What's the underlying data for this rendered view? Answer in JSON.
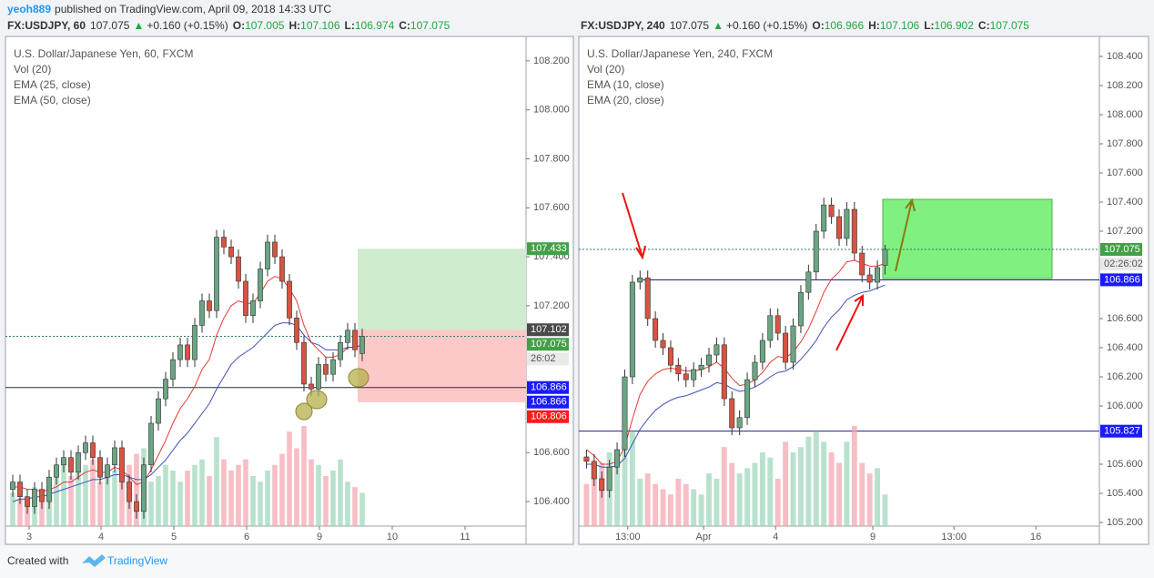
{
  "header": {
    "author": "yeoh889",
    "text": "published on TradingView.com, April 09, 2018 14:33 UTC"
  },
  "footer": {
    "text": "Created with",
    "brand": "TradingView"
  },
  "chart_data": [
    {
      "type": "candlestick",
      "symbol": "FX:USDJPY, 60",
      "last": "107.075",
      "direction": "▲",
      "change": "+0.160 (+0.15%)",
      "ohlc": [
        [
          "O:",
          "107.005"
        ],
        [
          "H:",
          "107.106"
        ],
        [
          "L:",
          "106.974"
        ],
        [
          "C:",
          "107.075"
        ]
      ],
      "legend": [
        "U.S. Dollar/Japanese Yen, 60, FXCM",
        "Vol (20)",
        "EMA (25, close)",
        "EMA (50, close)"
      ],
      "up_color": "#6ba583",
      "down_color": "#d75442",
      "x": [
        1,
        2,
        3,
        4,
        5,
        6,
        7,
        8,
        9,
        10,
        11,
        12,
        13,
        14,
        15,
        16,
        17,
        18,
        19,
        20,
        21,
        22,
        23,
        24,
        25,
        26,
        27,
        28,
        29,
        30,
        31,
        32,
        33,
        34,
        35,
        36,
        37,
        38,
        39,
        40,
        41,
        42,
        43,
        44,
        45,
        46,
        47,
        48,
        49
      ],
      "open": [
        106.45,
        106.48,
        106.42,
        106.38,
        106.45,
        106.4,
        106.5,
        106.55,
        106.58,
        106.52,
        106.6,
        106.64,
        106.58,
        106.5,
        106.55,
        106.62,
        106.48,
        106.4,
        106.36,
        106.55,
        106.72,
        106.82,
        106.9,
        106.98,
        107.04,
        106.98,
        107.12,
        107.22,
        107.18,
        107.48,
        107.44,
        107.4,
        107.3,
        107.16,
        107.22,
        107.35,
        107.46,
        107.4,
        107.3,
        107.15,
        107.05,
        106.88,
        106.86,
        106.96,
        106.92,
        106.98,
        107.05,
        107.1,
        107.005
      ],
      "high": [
        106.51,
        106.51,
        106.45,
        106.48,
        106.48,
        106.53,
        106.58,
        106.61,
        106.61,
        106.63,
        106.67,
        106.67,
        106.61,
        106.58,
        106.65,
        106.65,
        106.51,
        106.43,
        106.58,
        106.75,
        106.85,
        106.93,
        107.01,
        107.07,
        107.07,
        107.15,
        107.25,
        107.25,
        107.51,
        107.51,
        107.47,
        107.43,
        107.33,
        107.25,
        107.38,
        107.49,
        107.49,
        107.43,
        107.33,
        107.18,
        107.08,
        106.91,
        106.99,
        106.99,
        107.01,
        107.08,
        107.13,
        107.13,
        107.106
      ],
      "low": [
        106.42,
        106.39,
        106.35,
        106.35,
        106.37,
        106.37,
        106.47,
        106.52,
        106.49,
        106.49,
        106.57,
        106.55,
        106.47,
        106.47,
        106.52,
        106.45,
        106.37,
        106.33,
        106.33,
        106.52,
        106.69,
        106.79,
        106.87,
        106.95,
        106.95,
        106.95,
        107.09,
        107.15,
        107.15,
        107.41,
        107.37,
        107.27,
        107.13,
        107.13,
        107.19,
        107.32,
        107.37,
        107.27,
        107.12,
        107.02,
        106.85,
        106.83,
        106.83,
        106.89,
        106.89,
        106.95,
        107.02,
        106.99,
        106.974
      ],
      "close": [
        106.48,
        106.42,
        106.38,
        106.45,
        106.4,
        106.5,
        106.55,
        106.58,
        106.52,
        106.6,
        106.64,
        106.58,
        106.5,
        106.55,
        106.62,
        106.48,
        106.4,
        106.36,
        106.55,
        106.72,
        106.82,
        106.9,
        106.98,
        107.04,
        106.98,
        107.12,
        107.22,
        107.18,
        107.48,
        107.44,
        107.4,
        107.3,
        107.16,
        107.22,
        107.35,
        107.46,
        107.4,
        107.3,
        107.15,
        107.05,
        106.88,
        106.86,
        106.96,
        106.92,
        106.98,
        107.05,
        107.1,
        107.02,
        107.075
      ],
      "volume": [
        30,
        25,
        20,
        35,
        30,
        40,
        55,
        60,
        45,
        50,
        55,
        60,
        40,
        45,
        50,
        70,
        55,
        65,
        70,
        40,
        45,
        55,
        50,
        40,
        50,
        55,
        60,
        45,
        80,
        60,
        50,
        55,
        60,
        45,
        40,
        50,
        55,
        65,
        85,
        70,
        90,
        60,
        55,
        45,
        50,
        60,
        40,
        35,
        30
      ],
      "series": [
        {
          "name": "EMA (25, close)",
          "color": "#e53935",
          "values": [
            106.46,
            106.46,
            106.45,
            106.45,
            106.44,
            106.45,
            106.46,
            106.48,
            106.48,
            106.5,
            106.52,
            106.53,
            106.52,
            106.52,
            106.54,
            106.53,
            106.5,
            106.47,
            106.48,
            106.53,
            106.59,
            106.65,
            106.72,
            106.78,
            106.82,
            106.87,
            106.94,
            106.98,
            107.08,
            107.15,
            107.2,
            107.22,
            107.21,
            107.21,
            107.25,
            107.3,
            107.32,
            107.31,
            107.27,
            107.22,
            107.12,
            107.05,
            107.02,
            106.99,
            106.99,
            107.0,
            107.03,
            107.03,
            107.04
          ]
        },
        {
          "name": "EMA (50, close)",
          "color": "#3f51b5",
          "values": [
            106.4,
            106.41,
            106.41,
            106.42,
            106.42,
            106.43,
            106.44,
            106.45,
            106.46,
            106.47,
            106.48,
            106.49,
            106.49,
            106.5,
            106.51,
            106.51,
            106.5,
            106.49,
            106.49,
            106.51,
            106.54,
            106.57,
            106.61,
            106.65,
            106.68,
            106.72,
            106.76,
            106.8,
            106.86,
            106.91,
            106.96,
            106.99,
            107.01,
            107.03,
            107.06,
            107.09,
            107.12,
            107.13,
            107.13,
            107.12,
            107.08,
            107.05,
            107.04,
            107.02,
            107.02,
            107.02,
            107.03,
            107.03,
            107.04
          ]
        }
      ],
      "xlim": [
        0,
        71.5
      ],
      "xticks": [
        {
          "value": 3.25,
          "label": "3"
        },
        {
          "value": 13.125,
          "label": "4"
        },
        {
          "value": 23.125,
          "label": "5"
        },
        {
          "value": 33.125,
          "label": "6"
        },
        {
          "value": 43.125,
          "label": "9"
        },
        {
          "value": 53.125,
          "label": "10"
        },
        {
          "value": 63.125,
          "label": "11"
        }
      ],
      "ylim": [
        106.3,
        108.3
      ],
      "yticks": [
        {
          "value": 106.4,
          "label": "106.400"
        },
        {
          "value": 106.6,
          "label": "106.600"
        },
        {
          "value": 107.2,
          "label": "107.200"
        },
        {
          "value": 107.4,
          "label": "107.400"
        },
        {
          "value": 107.6,
          "label": "107.600"
        },
        {
          "value": 107.8,
          "label": "107.800"
        },
        {
          "value": 108.0,
          "label": "108.000"
        },
        {
          "value": 108.2,
          "label": "108.200"
        }
      ],
      "price_labels": [
        {
          "value": 107.433,
          "label": "107.433",
          "color": "#43a047"
        },
        {
          "value": 107.102,
          "label": "107.102",
          "color": "#4a4a4a"
        },
        {
          "value": 107.075,
          "label": "107.075",
          "color": "#43a047"
        },
        {
          "value": 106.866,
          "label": "106.866",
          "color": "#1a1aff"
        },
        {
          "value": 106.866,
          "label": "106.866",
          "color": "#1a1aff"
        },
        {
          "value": 106.806,
          "label": "106.806",
          "color": "#ff1a1a"
        }
      ],
      "countdown": "26:02"
    },
    {
      "type": "candlestick",
      "symbol": "FX:USDJPY, 240",
      "last": "107.075",
      "direction": "▲",
      "change": "+0.160 (+0.15%)",
      "ohlc": [
        [
          "O:",
          "106.966"
        ],
        [
          "H:",
          "107.106"
        ],
        [
          "L:",
          "106.902"
        ],
        [
          "C:",
          "107.075"
        ]
      ],
      "legend": [
        "U.S. Dollar/Japanese Yen, 240, FXCM",
        "Vol (20)",
        "EMA (10, close)",
        "EMA (20, close)"
      ],
      "up_color": "#6ba583",
      "down_color": "#d75442",
      "x": [
        1,
        2,
        3,
        4,
        5,
        6,
        7,
        8,
        9,
        10,
        11,
        12,
        13,
        14,
        15,
        16,
        17,
        18,
        19,
        20,
        21,
        22,
        23,
        24,
        25,
        26,
        27,
        28,
        29,
        30,
        31,
        32,
        33,
        34,
        35,
        36,
        37,
        38,
        39,
        40
      ],
      "open": [
        105.65,
        105.62,
        105.5,
        105.42,
        105.58,
        105.7,
        106.2,
        106.85,
        106.88,
        106.6,
        106.45,
        106.4,
        106.28,
        106.22,
        106.18,
        106.25,
        106.28,
        106.35,
        106.42,
        106.05,
        105.85,
        105.92,
        106.18,
        106.3,
        106.45,
        106.62,
        106.5,
        106.3,
        106.55,
        106.78,
        106.92,
        107.2,
        107.38,
        107.3,
        107.15,
        107.35,
        107.05,
        106.9,
        106.85,
        106.966
      ],
      "high": [
        105.7,
        105.67,
        105.55,
        105.63,
        105.75,
        106.25,
        106.9,
        106.93,
        106.93,
        106.65,
        106.5,
        106.45,
        106.33,
        106.27,
        106.3,
        106.33,
        106.4,
        106.47,
        106.47,
        106.1,
        105.97,
        106.23,
        106.35,
        106.5,
        106.67,
        106.67,
        106.55,
        106.6,
        106.83,
        106.97,
        107.25,
        107.43,
        107.43,
        107.35,
        107.4,
        107.4,
        107.1,
        106.95,
        107.0,
        107.106
      ],
      "low": [
        105.57,
        105.45,
        105.37,
        105.37,
        105.53,
        105.65,
        106.15,
        106.8,
        106.55,
        106.4,
        106.35,
        106.23,
        106.17,
        106.13,
        106.13,
        106.2,
        106.23,
        106.3,
        106.0,
        105.8,
        105.8,
        105.87,
        106.13,
        106.25,
        106.4,
        106.45,
        106.25,
        106.25,
        106.5,
        106.73,
        106.87,
        107.15,
        107.25,
        107.1,
        107.1,
        107.0,
        106.85,
        106.8,
        106.8,
        106.902
      ],
      "close": [
        105.62,
        105.5,
        105.42,
        105.58,
        105.7,
        106.2,
        106.85,
        106.88,
        106.6,
        106.45,
        106.4,
        106.28,
        106.22,
        106.18,
        106.25,
        106.28,
        106.35,
        106.42,
        106.05,
        105.85,
        105.92,
        106.18,
        106.3,
        106.45,
        106.62,
        106.5,
        106.3,
        106.55,
        106.78,
        106.92,
        107.2,
        107.38,
        107.3,
        107.15,
        107.35,
        107.05,
        106.9,
        106.85,
        106.95,
        107.075
      ],
      "volume": [
        40,
        55,
        60,
        70,
        65,
        80,
        90,
        45,
        50,
        40,
        35,
        30,
        45,
        40,
        35,
        30,
        50,
        45,
        75,
        60,
        50,
        55,
        60,
        70,
        65,
        45,
        80,
        70,
        75,
        85,
        90,
        80,
        70,
        60,
        80,
        95,
        60,
        50,
        55,
        30
      ],
      "series": [
        {
          "name": "EMA (10, close)",
          "color": "#e53935",
          "values": [
            105.7,
            105.66,
            105.6,
            105.6,
            105.62,
            105.72,
            105.91,
            106.08,
            106.17,
            106.22,
            106.25,
            106.26,
            106.25,
            106.24,
            106.24,
            106.25,
            106.27,
            106.3,
            106.26,
            106.19,
            106.14,
            106.15,
            106.18,
            106.23,
            106.3,
            106.34,
            106.33,
            106.37,
            106.44,
            106.53,
            106.65,
            106.78,
            106.87,
            106.92,
            106.99,
            107.0,
            106.98,
            106.96,
            106.96,
            106.98
          ]
        },
        {
          "name": "EMA (20, close)",
          "color": "#3f51b5",
          "values": [
            105.6,
            105.6,
            105.58,
            105.58,
            105.59,
            105.64,
            105.74,
            105.84,
            105.91,
            105.97,
            106.01,
            106.04,
            106.06,
            106.07,
            106.09,
            106.11,
            106.13,
            106.16,
            106.15,
            106.12,
            106.1,
            106.11,
            106.13,
            106.16,
            106.2,
            106.23,
            106.24,
            106.27,
            106.32,
            106.38,
            106.45,
            106.54,
            106.61,
            106.66,
            106.73,
            106.76,
            106.78,
            106.79,
            106.81,
            106.83
          ]
        }
      ],
      "xlim": [
        0,
        68
      ],
      "xticks": [
        {
          "value": 6.4,
          "label": "13:00"
        },
        {
          "value": 16.3,
          "label": "Apr"
        },
        {
          "value": 25.7,
          "label": "4"
        },
        {
          "value": 38.4,
          "label": "9"
        },
        {
          "value": 49.0,
          "label": "13:00"
        },
        {
          "value": 59.7,
          "label": "16"
        }
      ],
      "ylim": [
        105.175,
        108.5375
      ],
      "yticks": [
        {
          "value": 105.2,
          "label": "105.200"
        },
        {
          "value": 105.4,
          "label": "105.400"
        },
        {
          "value": 105.6,
          "label": "105.600"
        },
        {
          "value": 106.0,
          "label": "106.000"
        },
        {
          "value": 106.2,
          "label": "106.200"
        },
        {
          "value": 106.4,
          "label": "106.400"
        },
        {
          "value": 106.6,
          "label": "106.600"
        },
        {
          "value": 107.2,
          "label": "107.200"
        },
        {
          "value": 107.4,
          "label": "107.400"
        },
        {
          "value": 107.6,
          "label": "107.600"
        },
        {
          "value": 107.8,
          "label": "107.800"
        },
        {
          "value": 108.0,
          "label": "108.000"
        },
        {
          "value": 108.2,
          "label": "108.200"
        },
        {
          "value": 108.4,
          "label": "108.400"
        }
      ],
      "price_labels": [
        {
          "value": 107.075,
          "label": "107.075",
          "color": "#43a047"
        },
        {
          "value": 106.866,
          "label": "106.866",
          "color": "#1a1aff"
        },
        {
          "value": 105.827,
          "label": "105.827",
          "color": "#1a1aff"
        }
      ],
      "countdown": "02:26:02"
    }
  ]
}
